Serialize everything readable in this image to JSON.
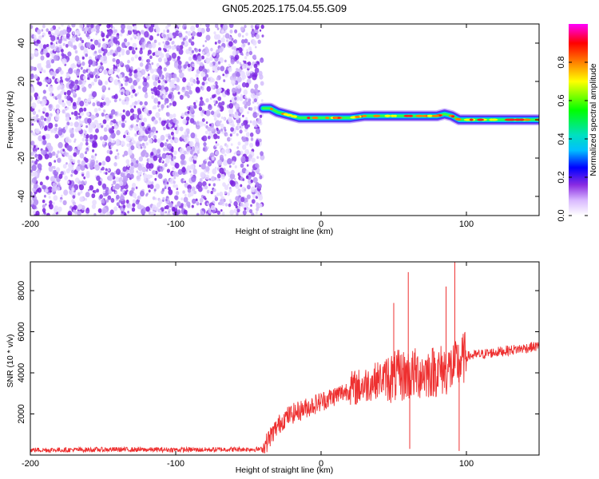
{
  "title": "GN05.2025.175.04.55.G09",
  "chart_data": [
    {
      "type": "heatmap",
      "xlabel": "Height of straight line (km)",
      "ylabel": "Frequency (Hz)",
      "xlim": [
        -200,
        150
      ],
      "ylim": [
        -50,
        50
      ],
      "x_ticks": [
        -200,
        -100,
        0,
        100
      ],
      "y_ticks": [
        -40,
        -20,
        0,
        20,
        40
      ],
      "noise_region": {
        "x_range": [
          -200,
          -40
        ],
        "description_values": "scattered low-amplitude speckle (purple/violet) across full frequency range"
      },
      "signal_track": {
        "x": [
          -40,
          -35,
          -30,
          -25,
          -20,
          -15,
          -10,
          -5,
          0,
          10,
          20,
          30,
          40,
          50,
          60,
          70,
          80,
          85,
          90,
          95,
          100,
          110,
          120,
          130,
          140,
          150
        ],
        "frequency": [
          6,
          6,
          4,
          3,
          2,
          1,
          1,
          1,
          1,
          1,
          1,
          2,
          2,
          2,
          2,
          2,
          2,
          3,
          2,
          0,
          0,
          0,
          0,
          0,
          0,
          0
        ]
      },
      "colorbar": {
        "label": "Normalized spectral amplitude",
        "ticks": [
          0.0,
          0.2,
          0.4,
          0.6,
          0.8
        ],
        "range": [
          0,
          1
        ],
        "colors": [
          "#ffffff",
          "#d8b8ff",
          "#8a2be2",
          "#0000ff",
          "#00bfff",
          "#00e0c0",
          "#00ff00",
          "#ffff00",
          "#ff8000",
          "#ff0000",
          "#ff00ff"
        ]
      }
    },
    {
      "type": "line",
      "xlabel": "Height of straight line (km)",
      "ylabel": "SNR (10 * v/v)",
      "xlim": [
        -200,
        150
      ],
      "ylim": [
        0,
        9400
      ],
      "x_ticks": [
        -200,
        -100,
        0,
        100
      ],
      "y_ticks": [
        2000,
        4000,
        6000,
        8000
      ],
      "color": "#ee3030",
      "series": [
        {
          "x": [
            -200,
            -180,
            -160,
            -140,
            -120,
            -100,
            -80,
            -60,
            -40,
            -35,
            -30,
            -25,
            -20,
            -10,
            0,
            10,
            20,
            30,
            40,
            50,
            60,
            70,
            80,
            90,
            100,
            110,
            120,
            130,
            140,
            150
          ],
          "values": [
            250,
            250,
            260,
            270,
            260,
            260,
            260,
            280,
            280,
            900,
            1400,
            1800,
            2000,
            2300,
            2600,
            2900,
            3200,
            3400,
            3700,
            3800,
            3900,
            4000,
            4100,
            4200,
            4800,
            4900,
            5000,
            5100,
            5200,
            5300
          ]
        }
      ],
      "spikes": [
        {
          "x": 60,
          "value": 8900
        },
        {
          "x": 61,
          "value": 300
        },
        {
          "x": 92,
          "value": 9400
        },
        {
          "x": 95,
          "value": 200
        },
        {
          "x": 86,
          "value": 8200
        },
        {
          "x": 50,
          "value": 7400
        }
      ]
    }
  ]
}
